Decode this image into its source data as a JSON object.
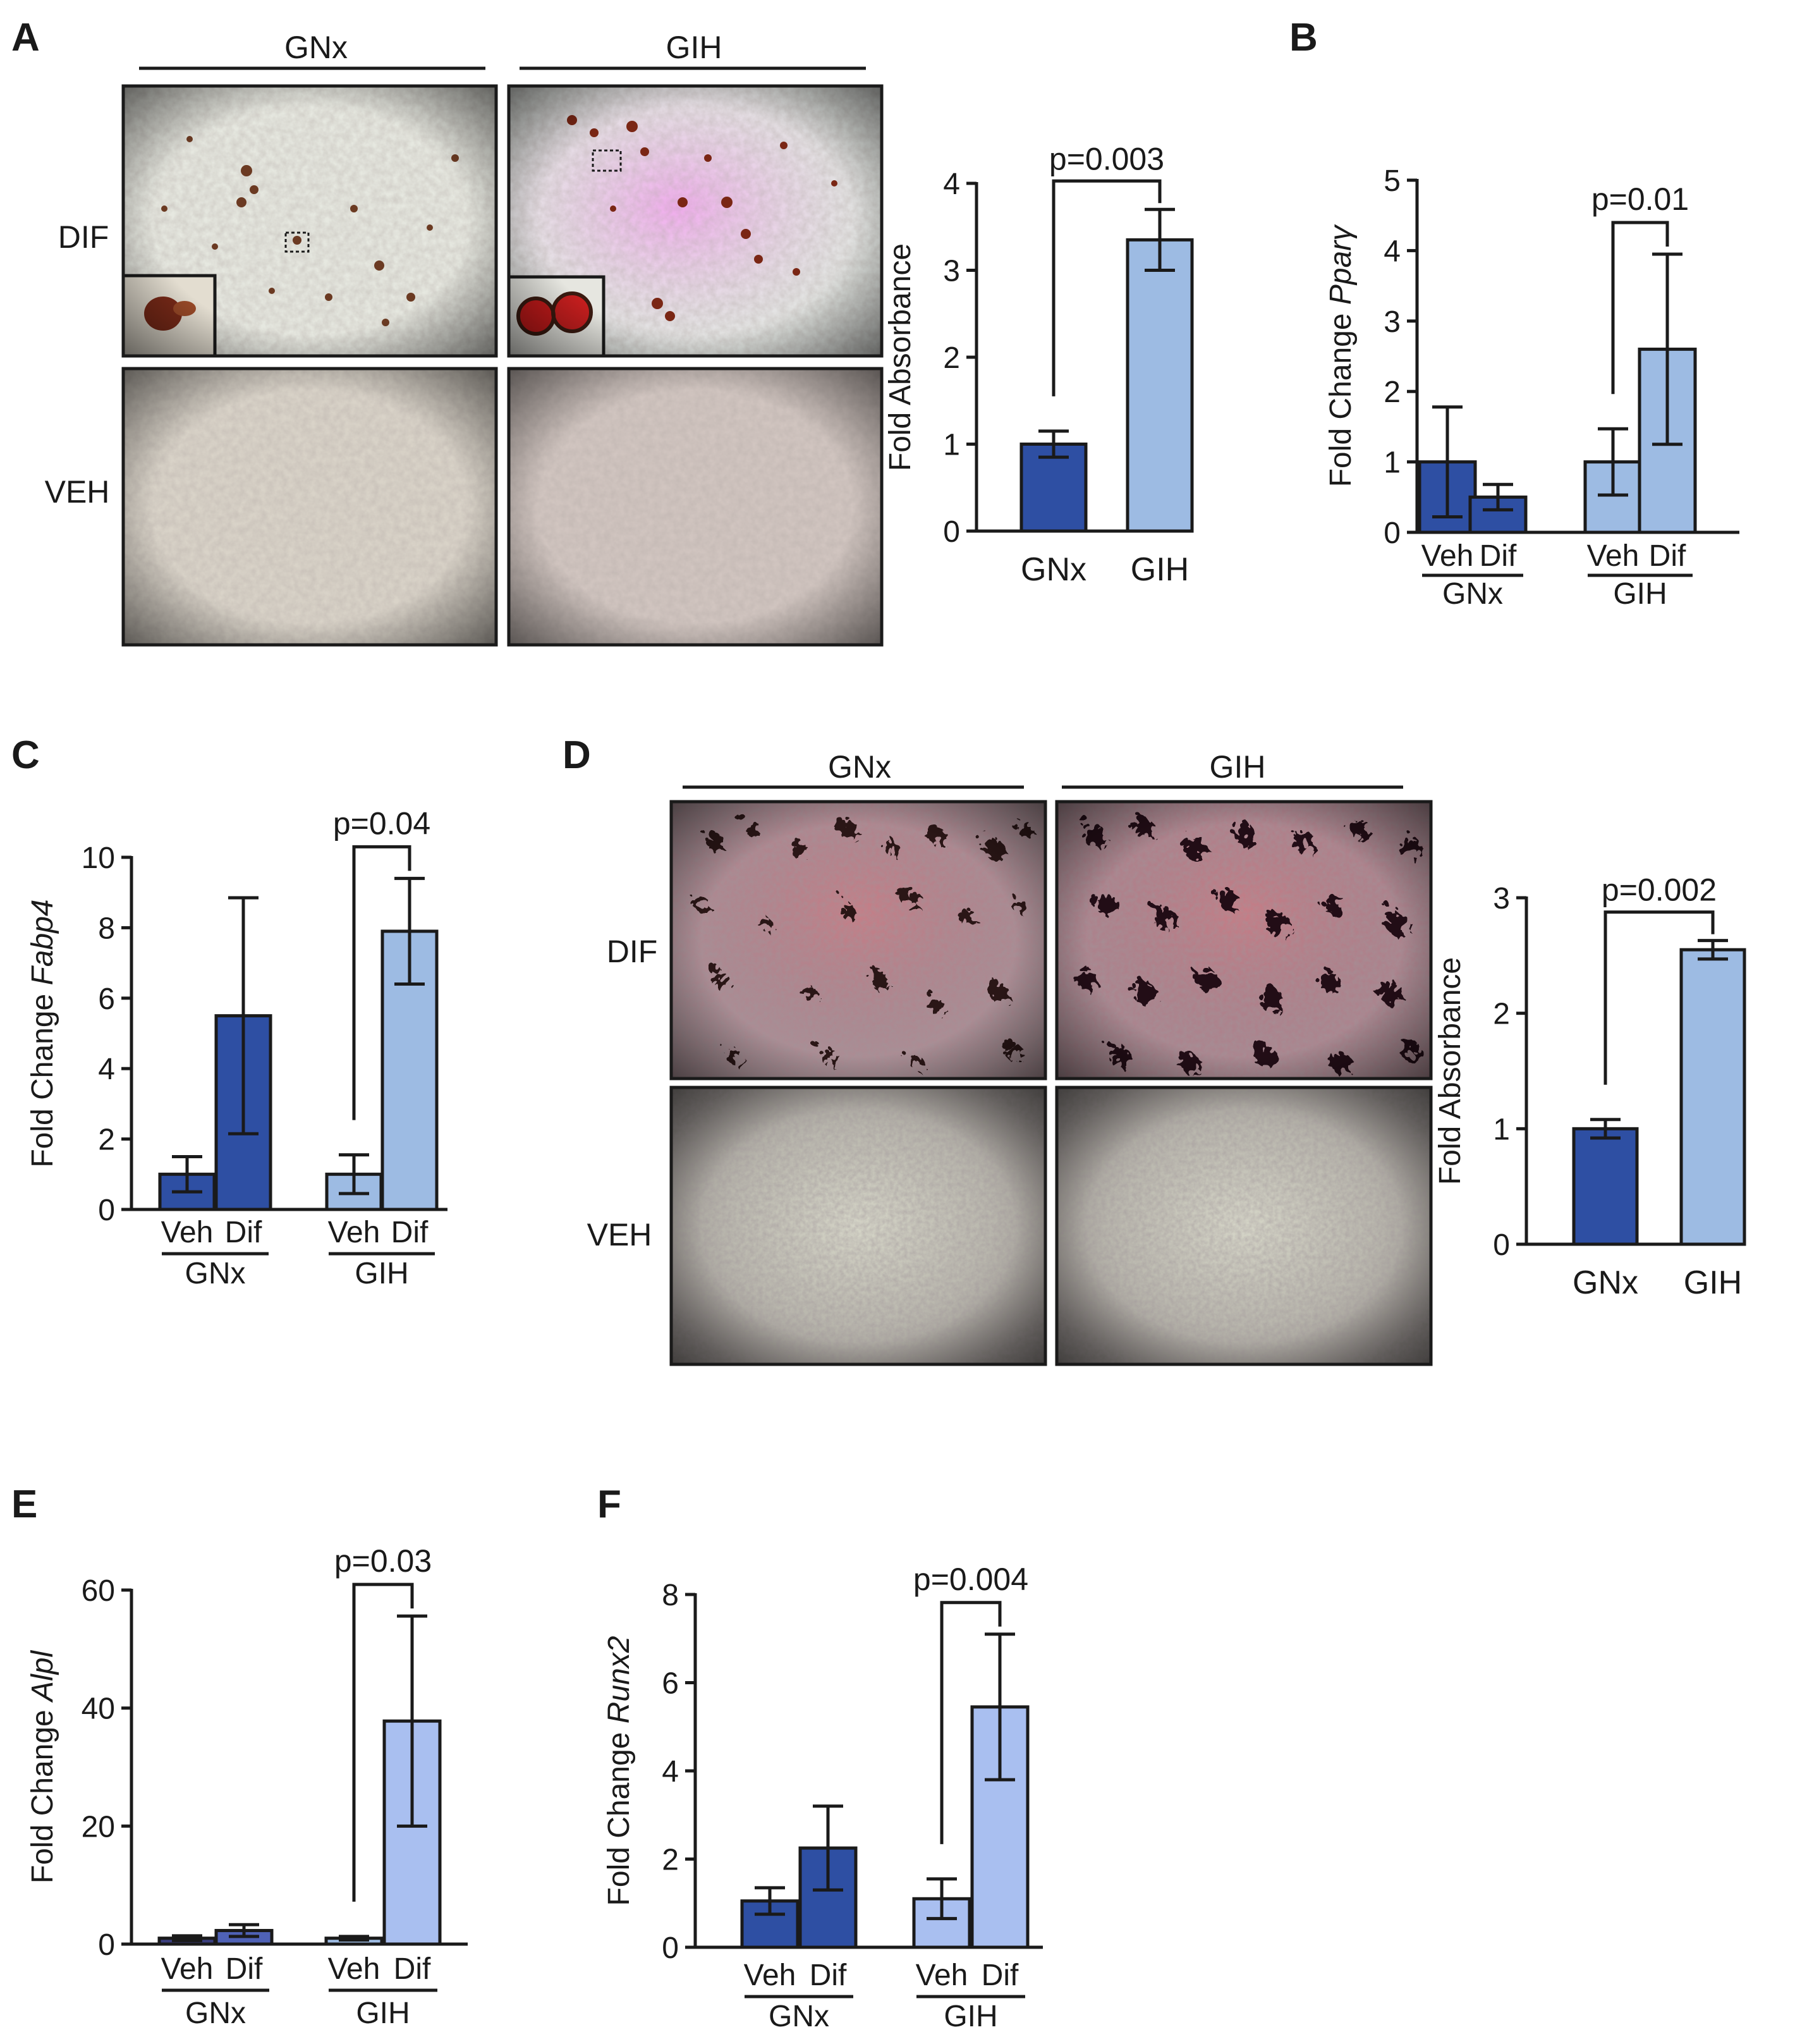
{
  "colors": {
    "dark_blue": "#2e4fa3",
    "light_blue": "#9dbbe3",
    "e_veh_bar": "#3b3f7e",
    "e_dif_bar": "#4f62b6",
    "f_light_bar": "#a9bff0",
    "axis": "#1a1a1a",
    "micro_border": "#1a1a1a"
  },
  "panels": [
    {
      "id": "A",
      "label": "A"
    },
    {
      "id": "B",
      "label": "B"
    },
    {
      "id": "C",
      "label": "C"
    },
    {
      "id": "D",
      "label": "D"
    },
    {
      "id": "E",
      "label": "E"
    },
    {
      "id": "F",
      "label": "F"
    }
  ],
  "micrographs": {
    "A": {
      "groups": [
        "GNx",
        "GIH"
      ],
      "rows": [
        "DIF",
        "VEH"
      ],
      "stain": "sparse red lipid droplets with magnified insets"
    },
    "D": {
      "groups": [
        "GNx",
        "GIH"
      ],
      "rows": [
        "DIF",
        "VEH"
      ],
      "stain": "dense dark mineral nodules"
    }
  },
  "chart_data": [
    {
      "id": "A-right",
      "type": "bar",
      "ylabel": "Fold Absorbance",
      "ylim": [
        0,
        4
      ],
      "yticks": [
        "0",
        "1",
        "2",
        "3",
        "4"
      ],
      "categories": [
        "GNx",
        "GIH"
      ],
      "values": [
        1.0,
        3.35
      ],
      "errors": [
        0.15,
        0.35
      ],
      "bar_colors": [
        "#2e4fa3",
        "#9dbbe3"
      ],
      "comparison": {
        "label": "p=0.003",
        "from": "GNx",
        "to": "GIH"
      }
    },
    {
      "id": "B",
      "type": "bar",
      "ylabel_prefix": "Fold Change ",
      "ylabel_gene": "Pparγ",
      "ylim": [
        0,
        5
      ],
      "yticks": [
        "0",
        "1",
        "2",
        "3",
        "4",
        "5"
      ],
      "groups": [
        {
          "name": "GNx",
          "bars": [
            {
              "label": "Veh",
              "value": 1.0,
              "error": 0.78
            },
            {
              "label": "Dif",
              "value": 0.5,
              "error": 0.18
            }
          ]
        },
        {
          "name": "GIH",
          "bars": [
            {
              "label": "Veh",
              "value": 1.0,
              "error": 0.47
            },
            {
              "label": "Dif",
              "value": 2.6,
              "error": 1.35
            }
          ]
        }
      ],
      "comparison": {
        "label": "p=0.01",
        "group": "GIH"
      }
    },
    {
      "id": "C",
      "type": "bar",
      "ylabel_prefix": "Fold Change ",
      "ylabel_gene": "Fabp4",
      "ylim": [
        0,
        10
      ],
      "yticks": [
        "0",
        "2",
        "4",
        "6",
        "8",
        "10"
      ],
      "groups": [
        {
          "name": "GNx",
          "bars": [
            {
              "label": "Veh",
              "value": 1.0,
              "error": 0.5
            },
            {
              "label": "Dif",
              "value": 5.5,
              "error": 3.35
            }
          ]
        },
        {
          "name": "GIH",
          "bars": [
            {
              "label": "Veh",
              "value": 1.0,
              "error": 0.55
            },
            {
              "label": "Dif",
              "value": 7.9,
              "error": 1.5
            }
          ]
        }
      ],
      "comparison": {
        "label": "p=0.04",
        "group": "GIH"
      }
    },
    {
      "id": "D-right",
      "type": "bar",
      "ylabel": "Fold Absorbance",
      "ylim": [
        0,
        3
      ],
      "yticks": [
        "0",
        "1",
        "2",
        "3"
      ],
      "categories": [
        "GNx",
        "GIH"
      ],
      "values": [
        1.0,
        2.55
      ],
      "errors": [
        0.08,
        0.08
      ],
      "bar_colors": [
        "#2e4fa3",
        "#9dbbe3"
      ],
      "comparison": {
        "label": "p=0.002",
        "from": "GNx",
        "to": "GIH"
      }
    },
    {
      "id": "E",
      "type": "bar",
      "ylabel_prefix": "Fold Change ",
      "ylabel_gene": "Alpl",
      "ylim": [
        0,
        60
      ],
      "yticks": [
        "0",
        "20",
        "40",
        "60"
      ],
      "groups": [
        {
          "name": "GNx",
          "bars": [
            {
              "label": "Veh",
              "value": 1.0,
              "error": 0.4
            },
            {
              "label": "Dif",
              "value": 2.3,
              "error": 1.0
            }
          ]
        },
        {
          "name": "GIH",
          "bars": [
            {
              "label": "Veh",
              "value": 1.0,
              "error": 0.3
            },
            {
              "label": "Dif",
              "value": 37.8,
              "error": 17.8
            }
          ]
        }
      ],
      "comparison": {
        "label": "p=0.03",
        "group": "GIH"
      }
    },
    {
      "id": "F",
      "type": "bar",
      "ylabel_prefix": "Fold Change ",
      "ylabel_gene": "Runx2",
      "ylim": [
        0,
        8
      ],
      "yticks": [
        "0",
        "2",
        "4",
        "6",
        "8"
      ],
      "groups": [
        {
          "name": "GNx",
          "bars": [
            {
              "label": "Veh",
              "value": 1.05,
              "error": 0.3
            },
            {
              "label": "Dif",
              "value": 2.25,
              "error": 0.95
            }
          ]
        },
        {
          "name": "GIH",
          "bars": [
            {
              "label": "Veh",
              "value": 1.1,
              "error": 0.45
            },
            {
              "label": "Dif",
              "value": 5.45,
              "error": 1.65
            }
          ]
        }
      ],
      "comparison": {
        "label": "p=0.004",
        "group": "GIH"
      }
    }
  ]
}
